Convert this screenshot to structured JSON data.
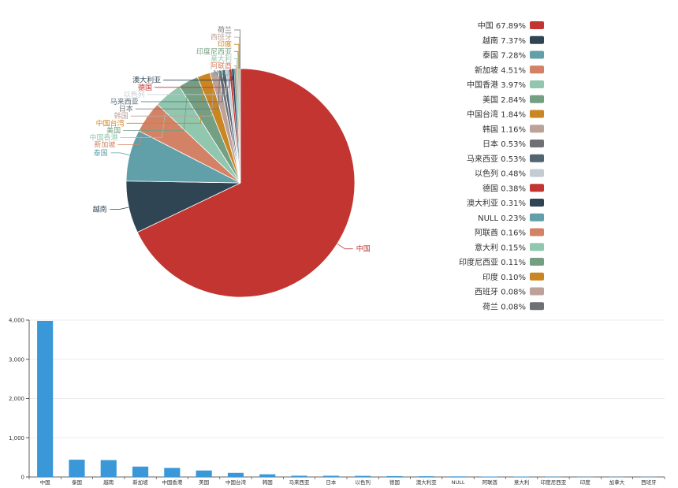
{
  "chart_data": [
    {
      "type": "pie",
      "slices": [
        {
          "name": "中国",
          "percent": 67.89,
          "pct_label": "67.89%",
          "color": "#c23531"
        },
        {
          "name": "越南",
          "percent": 7.37,
          "pct_label": "7.37%",
          "color": "#2f4554"
        },
        {
          "name": "泰国",
          "percent": 7.28,
          "pct_label": "7.28%",
          "color": "#61a0a8"
        },
        {
          "name": "新加坡",
          "percent": 4.51,
          "pct_label": "4.51%",
          "color": "#d48265"
        },
        {
          "name": "中国香港",
          "percent": 3.97,
          "pct_label": "3.97%",
          "color": "#91c7ae"
        },
        {
          "name": "美国",
          "percent": 2.84,
          "pct_label": "2.84%",
          "color": "#749f83"
        },
        {
          "name": "中国台湾",
          "percent": 1.84,
          "pct_label": "1.84%",
          "color": "#ca8622"
        },
        {
          "name": "韩国",
          "percent": 1.16,
          "pct_label": "1.16%",
          "color": "#bda29a"
        },
        {
          "name": "日本",
          "percent": 0.53,
          "pct_label": "0.53%",
          "color": "#6e7074"
        },
        {
          "name": "马来西亚",
          "percent": 0.53,
          "pct_label": "0.53%",
          "color": "#546570"
        },
        {
          "name": "以色列",
          "percent": 0.48,
          "pct_label": "0.48%",
          "color": "#c4ccd3"
        },
        {
          "name": "德国",
          "percent": 0.38,
          "pct_label": "0.38%",
          "color": "#c23531"
        },
        {
          "name": "澳大利亚",
          "percent": 0.31,
          "pct_label": "0.31%",
          "color": "#2f4554"
        },
        {
          "name": "NULL",
          "percent": 0.23,
          "pct_label": "0.23%",
          "color": "#61a0a8"
        },
        {
          "name": "阿联酋",
          "percent": 0.16,
          "pct_label": "0.16%",
          "color": "#d48265"
        },
        {
          "name": "意大利",
          "percent": 0.15,
          "pct_label": "0.15%",
          "color": "#91c7ae"
        },
        {
          "name": "印度尼西亚",
          "percent": 0.11,
          "pct_label": "0.11%",
          "color": "#749f83"
        },
        {
          "name": "印度",
          "percent": 0.1,
          "pct_label": "0.10%",
          "color": "#ca8622"
        },
        {
          "name": "西班牙",
          "percent": 0.08,
          "pct_label": "0.08%",
          "color": "#bda29a"
        },
        {
          "name": "荷兰",
          "percent": 0.08,
          "pct_label": "0.08%",
          "color": "#6e7074"
        }
      ],
      "legend_position": "right"
    },
    {
      "type": "bar",
      "categories": [
        "中国",
        "泰国",
        "越南",
        "新加坡",
        "中国香港",
        "美国",
        "中国台湾",
        "韩国",
        "马来西亚",
        "日本",
        "以色列",
        "德国",
        "澳大利亚",
        "NULL",
        "阿联酋",
        "意大利",
        "印度尼西亚",
        "印度",
        "加拿大",
        "西班牙"
      ],
      "values": [
        3980,
        440,
        430,
        265,
        230,
        165,
        105,
        68,
        32,
        31,
        28,
        22,
        18,
        14,
        10,
        9,
        7,
        6,
        5,
        5
      ],
      "ylim": [
        0,
        4000
      ],
      "yticks": [
        0,
        1000,
        2000,
        3000,
        4000
      ],
      "ytick_labels": [
        "0",
        "1,000",
        "2,000",
        "3,000",
        "4,000"
      ],
      "color": "#3a98d9",
      "grid": true
    }
  ]
}
